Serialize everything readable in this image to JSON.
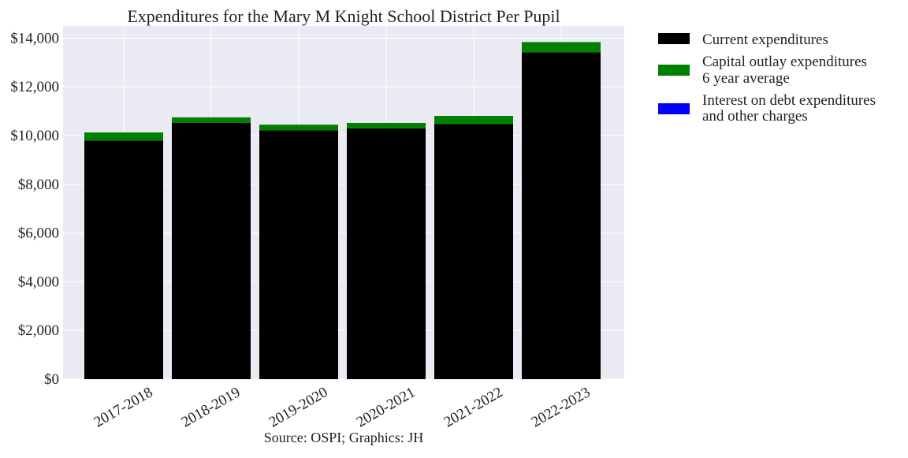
{
  "chart_data": {
    "type": "bar",
    "stacked": true,
    "title": "Expenditures for the Mary M Knight School District Per Pupil",
    "caption": "Source: OSPI; Graphics: JH",
    "xlabel": "",
    "ylabel": "",
    "categories": [
      "2017-2018",
      "2018-2019",
      "2019-2020",
      "2020-2021",
      "2021-2022",
      "2022-2023"
    ],
    "series": [
      {
        "name": "Current expenditures",
        "color": "#000000",
        "values": [
          9800,
          10530,
          10220,
          10300,
          10480,
          13420
        ]
      },
      {
        "name": "Capital outlay expenditures\n6 year average",
        "color": "#008000",
        "values": [
          330,
          220,
          230,
          220,
          330,
          420
        ]
      },
      {
        "name": "Interest on debt expenditures\nand other charges",
        "color": "#0000ff",
        "values": [
          0,
          0,
          0,
          0,
          0,
          0
        ]
      }
    ],
    "yticks": [
      "$0",
      "$2,000",
      "$4,000",
      "$6,000",
      "$8,000",
      "$10,000",
      "$12,000",
      "$14,000"
    ],
    "ylim": [
      0,
      14500
    ],
    "grid": true,
    "legend_position": "outside-right-top",
    "tick_label_rotation": 30
  }
}
